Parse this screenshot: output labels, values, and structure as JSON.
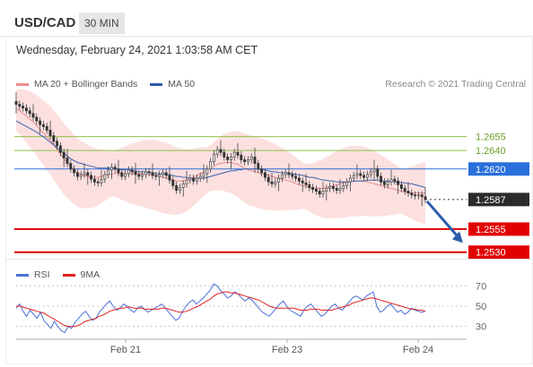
{
  "header": {
    "symbol": "USD/CAD",
    "timeframe": "30 MIN"
  },
  "timestamp": "Wednesday, February 24, 2021 1:03:58 AM CET",
  "legend": [
    {
      "label": "MA 20 + Bollinger Bands",
      "color": "#f28b8b"
    },
    {
      "label": "MA 50",
      "color": "#2a5caa"
    }
  ],
  "credit": "Research © 2021 Trading Central",
  "rsi_legend": [
    {
      "label": "RSI",
      "color": "#4a6fd8"
    },
    {
      "label": "9MA",
      "color": "#e02020"
    }
  ],
  "chart_data": [
    {
      "type": "candlestick",
      "ylim": [
        1.2522,
        1.2706
      ],
      "levels": [
        {
          "label": "1.2655",
          "value": 1.2655,
          "color": "#8fbf4a",
          "kind": "resistance"
        },
        {
          "label": "1.2640",
          "value": 1.264,
          "color": "#8fbf4a",
          "kind": "resistance"
        },
        {
          "label": "1.2620",
          "value": 1.262,
          "color": "#2a6fdb",
          "kind": "pivot"
        },
        {
          "label": "1.2587",
          "value": 1.2587,
          "color": "#333333",
          "kind": "last"
        },
        {
          "label": "1.2555",
          "value": 1.2555,
          "color": "#e00000",
          "kind": "support"
        },
        {
          "label": "1.2530",
          "value": 1.253,
          "color": "#e00000",
          "kind": "support"
        }
      ],
      "x_ticks": [
        "Feb 21",
        "Feb 23",
        "Feb 24"
      ],
      "close": [
        1.269,
        1.2688,
        1.2686,
        1.2683,
        1.268,
        1.2676,
        1.2672,
        1.2668,
        1.2666,
        1.2662,
        1.2656,
        1.265,
        1.2645,
        1.2638,
        1.2632,
        1.2626,
        1.262,
        1.2616,
        1.2612,
        1.2614,
        1.2616,
        1.2613,
        1.2609,
        1.2606,
        1.2605,
        1.2609,
        1.2614,
        1.2619,
        1.2622,
        1.262,
        1.2616,
        1.2612,
        1.2615,
        1.2619,
        1.2617,
        1.2614,
        1.2612,
        1.2614,
        1.2617,
        1.2616,
        1.2613,
        1.2612,
        1.2614,
        1.2616,
        1.2613,
        1.2608,
        1.2602,
        1.2597,
        1.26,
        1.2604,
        1.2608,
        1.261,
        1.2607,
        1.261,
        1.2612,
        1.2615,
        1.262,
        1.2628,
        1.2636,
        1.2641,
        1.2638,
        1.2633,
        1.263,
        1.2633,
        1.2638,
        1.2635,
        1.263,
        1.2628,
        1.263,
        1.2633,
        1.2626,
        1.262,
        1.2616,
        1.2611,
        1.2606,
        1.2604,
        1.2606,
        1.261,
        1.2614,
        1.2616,
        1.2614,
        1.2612,
        1.261,
        1.2607,
        1.2605,
        1.2603,
        1.26,
        1.2598,
        1.2596,
        1.2593,
        1.2596,
        1.2599,
        1.2601,
        1.2599,
        1.2597,
        1.2599,
        1.2602,
        1.2606,
        1.261,
        1.2613,
        1.2615,
        1.2613,
        1.2611,
        1.2614,
        1.2617,
        1.262,
        1.2612,
        1.2606,
        1.2603,
        1.2606,
        1.2609,
        1.2607,
        1.2603,
        1.2599,
        1.2596,
        1.2594,
        1.2592,
        1.2591,
        1.2592,
        1.259,
        1.2587
      ],
      "ma50": [
        1.2672,
        1.267,
        1.2668,
        1.2666,
        1.2664,
        1.2662,
        1.266,
        1.2657,
        1.2655,
        1.2652,
        1.2649,
        1.2646,
        1.2643,
        1.264,
        1.2637,
        1.2634,
        1.2631,
        1.2629,
        1.2627,
        1.2626,
        1.2625,
        1.2624,
        1.2623,
        1.2622,
        1.2621,
        1.2621,
        1.2621,
        1.2621,
        1.2621,
        1.262,
        1.262,
        1.2619,
        1.2619,
        1.2619,
        1.2618,
        1.2618,
        1.2617,
        1.2617,
        1.2617,
        1.2616,
        1.2616,
        1.2615,
        1.2615,
        1.2615,
        1.2614,
        1.2614,
        1.2613,
        1.2612,
        1.2612,
        1.2611,
        1.2611,
        1.261,
        1.261,
        1.261,
        1.261,
        1.261,
        1.2611,
        1.2612,
        1.2613,
        1.2614,
        1.2615,
        1.2616,
        1.2617,
        1.2618,
        1.2618,
        1.2619,
        1.2619,
        1.262,
        1.262,
        1.262,
        1.262,
        1.262,
        1.2619,
        1.2619,
        1.2618,
        1.2617,
        1.2617,
        1.2616,
        1.2616,
        1.2616,
        1.2615,
        1.2615,
        1.2614,
        1.2614,
        1.2613,
        1.2612,
        1.2611,
        1.2611,
        1.261,
        1.2609,
        1.2608,
        1.2608,
        1.2607,
        1.2607,
        1.2606,
        1.2606,
        1.2606,
        1.2606,
        1.2606,
        1.2607,
        1.2607,
        1.2607,
        1.2607,
        1.2608,
        1.2608,
        1.2608,
        1.2608,
        1.2607,
        1.2607,
        1.2607,
        1.2607,
        1.2606,
        1.2606,
        1.2605,
        1.2605,
        1.2604,
        1.2604,
        1.2603,
        1.2602,
        1.2601,
        1.26
      ],
      "ma20": [
        1.2685,
        1.2683,
        1.268,
        1.2677,
        1.2674,
        1.2671,
        1.2667,
        1.2663,
        1.2659,
        1.2655,
        1.2651,
        1.2646,
        1.2641,
        1.2636,
        1.2631,
        1.2627,
        1.2623,
        1.2619,
        1.2616,
        1.2614,
        1.2613,
        1.2612,
        1.2611,
        1.2611,
        1.2611,
        1.2612,
        1.2613,
        1.2614,
        1.2615,
        1.2615,
        1.2615,
        1.2615,
        1.2615,
        1.2615,
        1.2615,
        1.2615,
        1.2615,
        1.2615,
        1.2615,
        1.2614,
        1.2614,
        1.2613,
        1.2612,
        1.2611,
        1.261,
        1.2609,
        1.2608,
        1.2607,
        1.2607,
        1.2607,
        1.2608,
        1.2609,
        1.2611,
        1.2613,
        1.2615,
        1.2617,
        1.2619,
        1.2621,
        1.2623,
        1.2625,
        1.2626,
        1.2627,
        1.2627,
        1.2627,
        1.2626,
        1.2625,
        1.2623,
        1.2621,
        1.2619,
        1.2618,
        1.2617,
        1.2616,
        1.2615,
        1.2614,
        1.2613,
        1.2612,
        1.2611,
        1.261,
        1.2609,
        1.2608,
        1.2607,
        1.2606,
        1.2604,
        1.2603,
        1.2602,
        1.2601,
        1.26,
        1.2599,
        1.2599,
        1.2599,
        1.2599,
        1.26,
        1.2601,
        1.2602,
        1.2603,
        1.2604,
        1.2605,
        1.2606,
        1.2607,
        1.2607,
        1.2607,
        1.2607,
        1.2607,
        1.2606,
        1.2605,
        1.2604,
        1.2603,
        1.2602,
        1.2601,
        1.26,
        1.2599,
        1.2598,
        1.2597,
        1.2596,
        1.2595,
        1.2595,
        1.2594,
        1.2594,
        1.2594,
        1.2594,
        1.2594
      ],
      "band_width": 0.0024,
      "forecast_arrow": {
        "from": 1.2585,
        "to": 1.254
      }
    },
    {
      "type": "line",
      "name": "RSI",
      "ylim": [
        20,
        80
      ],
      "y_ticks": [
        70,
        50,
        30
      ],
      "rsi": [
        48,
        52,
        45,
        40,
        46,
        42,
        38,
        44,
        36,
        32,
        28,
        35,
        30,
        26,
        24,
        30,
        28,
        34,
        38,
        42,
        45,
        40,
        36,
        38,
        44,
        48,
        52,
        55,
        50,
        46,
        48,
        52,
        50,
        46,
        44,
        48,
        50,
        47,
        44,
        46,
        48,
        50,
        52,
        48,
        44,
        40,
        36,
        38,
        45,
        50,
        54,
        56,
        52,
        55,
        58,
        62,
        66,
        72,
        70,
        65,
        62,
        58,
        60,
        64,
        62,
        58,
        55,
        58,
        56,
        52,
        48,
        44,
        42,
        40,
        44,
        48,
        52,
        55,
        50,
        46,
        44,
        42,
        40,
        46,
        50,
        52,
        48,
        44,
        40,
        42,
        46,
        50,
        52,
        48,
        46,
        50,
        54,
        58,
        60,
        58,
        56,
        60,
        62,
        64,
        50,
        44,
        46,
        50,
        52,
        48,
        44,
        46,
        42,
        44,
        48,
        46,
        45,
        44,
        45
      ],
      "ma9": [
        50,
        50,
        49,
        48,
        47,
        46,
        45,
        44,
        43,
        41,
        39,
        37,
        35,
        33,
        31,
        30,
        30,
        30,
        31,
        33,
        35,
        36,
        37,
        38,
        40,
        41,
        43,
        45,
        46,
        47,
        48,
        48,
        49,
        49,
        48,
        48,
        48,
        47,
        47,
        47,
        47,
        47,
        48,
        48,
        47,
        46,
        45,
        44,
        44,
        45,
        46,
        48,
        49,
        51,
        53,
        55,
        57,
        60,
        62,
        63,
        64,
        64,
        63,
        63,
        62,
        61,
        60,
        59,
        58,
        57,
        56,
        54,
        52,
        50,
        49,
        48,
        48,
        48,
        48,
        48,
        48,
        47,
        46,
        46,
        46,
        47,
        47,
        47,
        46,
        46,
        46,
        46,
        47,
        48,
        49,
        50,
        51,
        53,
        54,
        55,
        56,
        57,
        58,
        58,
        57,
        56,
        55,
        54,
        53,
        52,
        51,
        50,
        49,
        48,
        47,
        47,
        46,
        46,
        45
      ]
    }
  ]
}
